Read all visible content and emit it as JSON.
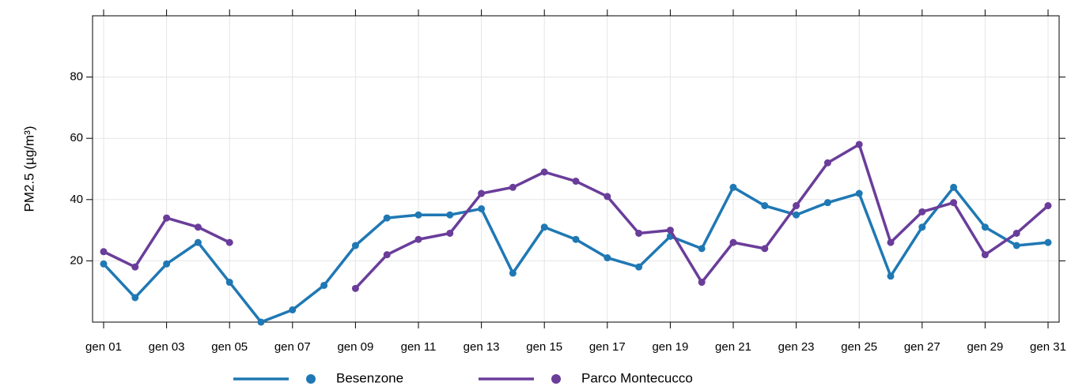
{
  "chart_data": {
    "type": "line",
    "y_label": "PM2.5 (µg/m³)",
    "categories": [
      "gen 01",
      null,
      "gen 03",
      null,
      "gen 05",
      null,
      "gen 07",
      null,
      "gen 09",
      null,
      "gen 11",
      null,
      "gen 13",
      null,
      "gen 15",
      null,
      "gen 17",
      null,
      "gen 19",
      null,
      "gen 21",
      null,
      "gen 23",
      null,
      "gen 25",
      null,
      "gen 27",
      null,
      "gen 29",
      null,
      "gen 31"
    ],
    "series": [
      {
        "name": "Besenzone",
        "color": "#1f78b4",
        "values": [
          19,
          8,
          19,
          26,
          13,
          0,
          4,
          12,
          25,
          34,
          35,
          35,
          37,
          16,
          31,
          27,
          21,
          18,
          28,
          24,
          44,
          38,
          35,
          39,
          42,
          15,
          31,
          44,
          31,
          25,
          26
        ]
      },
      {
        "name": "Parco Montecucco",
        "color": "#6a3d9a",
        "values": [
          23,
          18,
          34,
          31,
          26,
          null,
          null,
          null,
          11,
          22,
          27,
          29,
          42,
          44,
          49,
          46,
          41,
          29,
          30,
          13,
          26,
          24,
          38,
          52,
          58,
          26,
          36,
          39,
          22,
          29,
          38
        ]
      }
    ],
    "ylim": [
      0,
      100
    ],
    "yticks": [
      20,
      40,
      60,
      80
    ],
    "grid": true,
    "legend": "bottom"
  }
}
